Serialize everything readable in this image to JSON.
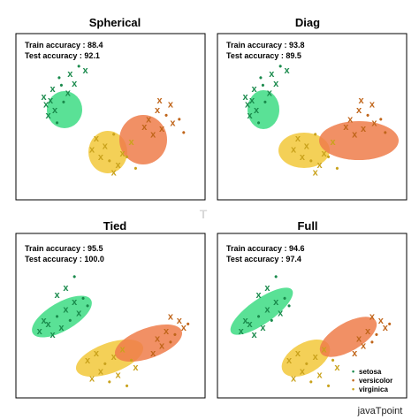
{
  "figure": {
    "watermark": "javaTpoint",
    "colors": {
      "setosa": "#1a8a4c",
      "versicolor": "#c0651a",
      "virginica": "#c9a21c",
      "setosa_ellipse": "#3ddc84",
      "versicolor_ellipse": "#ee7c4a",
      "virginica_ellipse": "#f2c83a"
    },
    "legend": {
      "labels": [
        "setosa",
        "versicolor",
        "virginica"
      ],
      "placement": "lower-right (Full panel)"
    }
  },
  "chart_data": [
    {
      "type": "scatter",
      "title": "Spherical",
      "train_accuracy": "Train accuracy : 88.4",
      "test_accuracy": "Test accuracy : 92.1",
      "series": [
        {
          "name": "setosa",
          "x": [
            1.2,
            1.6,
            2.0,
            2.3,
            2.6,
            1.9,
            1.3,
            1.7,
            2.1,
            1.5,
            2.4,
            2.8,
            3.1,
            1.4,
            1.8
          ],
          "y": [
            5.2,
            5.6,
            5.8,
            5.4,
            5.9,
            6.2,
            4.8,
            4.5,
            4.9,
            5.0,
            6.4,
            6.8,
            6.6,
            4.2,
            3.8
          ]
        },
        {
          "name": "versicolor",
          "x": [
            6.0,
            6.4,
            6.8,
            7.1,
            6.6,
            7.4,
            6.2,
            5.8,
            7.6,
            7.0,
            6.5
          ],
          "y": [
            4.0,
            4.5,
            4.2,
            3.8,
            3.5,
            4.0,
            3.2,
            3.6,
            3.3,
            4.8,
            5.0
          ]
        },
        {
          "name": "virginica",
          "x": [
            3.6,
            4.0,
            4.4,
            4.8,
            5.2,
            4.2,
            3.8,
            4.6,
            5.0,
            3.4,
            4.4,
            5.4
          ],
          "y": [
            3.0,
            2.6,
            3.2,
            2.2,
            2.8,
            1.8,
            2.0,
            1.6,
            2.0,
            2.4,
            1.2,
            1.4
          ]
        }
      ]
    },
    {
      "type": "scatter",
      "title": "Diag",
      "train_accuracy": "Train accuracy : 93.8",
      "test_accuracy": "Test accuracy : 89.5",
      "series": [
        {
          "name": "setosa",
          "x": [
            1.2,
            1.6,
            2.0,
            2.3,
            2.6,
            1.9,
            1.3,
            1.7,
            2.1,
            1.5,
            2.4,
            2.8,
            3.1,
            1.4,
            1.8
          ],
          "y": [
            5.2,
            5.6,
            5.8,
            5.4,
            5.9,
            6.2,
            4.8,
            4.5,
            4.9,
            5.0,
            6.4,
            6.8,
            6.6,
            4.2,
            3.8
          ]
        },
        {
          "name": "versicolor",
          "x": [
            6.0,
            6.4,
            6.8,
            7.1,
            6.6,
            7.4,
            6.2,
            5.8,
            7.6,
            7.0,
            6.5
          ],
          "y": [
            4.0,
            4.5,
            4.2,
            3.8,
            3.5,
            4.0,
            3.2,
            3.6,
            3.3,
            4.8,
            5.0
          ]
        },
        {
          "name": "virginica",
          "x": [
            3.6,
            4.0,
            4.4,
            4.8,
            5.2,
            4.2,
            3.8,
            4.6,
            5.0,
            3.4,
            4.4,
            5.4
          ],
          "y": [
            3.0,
            2.6,
            3.2,
            2.2,
            2.8,
            1.8,
            2.0,
            1.6,
            2.0,
            2.4,
            1.2,
            1.4
          ]
        }
      ]
    },
    {
      "type": "scatter",
      "title": "Tied",
      "train_accuracy": "Train accuracy : 95.5",
      "test_accuracy": "Test accuracy : 100.0",
      "series": [
        {
          "name": "setosa",
          "x": [
            1.0,
            1.4,
            1.8,
            2.2,
            2.6,
            3.0,
            1.6,
            2.0,
            2.4,
            1.2,
            2.8,
            3.2,
            1.8,
            2.2,
            2.6
          ],
          "y": [
            3.4,
            3.8,
            4.2,
            4.6,
            5.0,
            5.2,
            3.2,
            3.6,
            4.0,
            4.0,
            4.4,
            4.8,
            5.4,
            5.8,
            6.4
          ]
        },
        {
          "name": "versicolor",
          "x": [
            6.4,
            6.8,
            7.2,
            7.6,
            6.6,
            7.0,
            7.4,
            6.2,
            7.8,
            7.0
          ],
          "y": [
            3.0,
            3.4,
            3.2,
            3.6,
            2.6,
            2.8,
            4.0,
            2.2,
            3.8,
            4.2
          ]
        },
        {
          "name": "virginica",
          "x": [
            3.2,
            3.6,
            4.0,
            4.4,
            4.8,
            5.2,
            3.8,
            4.6,
            4.2,
            5.4,
            3.4,
            5.0
          ],
          "y": [
            1.8,
            2.2,
            1.6,
            2.0,
            2.4,
            1.8,
            1.2,
            1.0,
            0.6,
            1.4,
            0.8,
            0.4
          ]
        }
      ]
    },
    {
      "type": "scatter",
      "title": "Full",
      "train_accuracy": "Train accuracy : 94.6",
      "test_accuracy": "Test accuracy : 97.4",
      "series": [
        {
          "name": "setosa",
          "x": [
            1.0,
            1.4,
            1.8,
            2.2,
            2.6,
            3.0,
            1.6,
            2.0,
            2.4,
            1.2,
            2.8,
            3.2,
            1.8,
            2.2,
            2.6
          ],
          "y": [
            3.4,
            3.8,
            4.2,
            4.6,
            5.0,
            5.2,
            3.2,
            3.6,
            4.0,
            4.0,
            4.4,
            4.8,
            5.4,
            5.8,
            6.4
          ]
        },
        {
          "name": "versicolor",
          "x": [
            6.4,
            6.8,
            7.2,
            7.6,
            6.6,
            7.0,
            7.4,
            6.2,
            7.8,
            7.0
          ],
          "y": [
            3.0,
            3.4,
            3.2,
            3.6,
            2.6,
            2.8,
            4.0,
            2.2,
            3.8,
            4.2
          ]
        },
        {
          "name": "virginica",
          "x": [
            3.2,
            3.6,
            4.0,
            4.4,
            4.8,
            5.2,
            3.8,
            4.6,
            4.2,
            5.4,
            3.4,
            5.0
          ],
          "y": [
            1.8,
            2.2,
            1.6,
            2.0,
            2.4,
            1.8,
            1.2,
            1.0,
            0.6,
            1.4,
            0.8,
            0.4
          ]
        }
      ]
    }
  ]
}
